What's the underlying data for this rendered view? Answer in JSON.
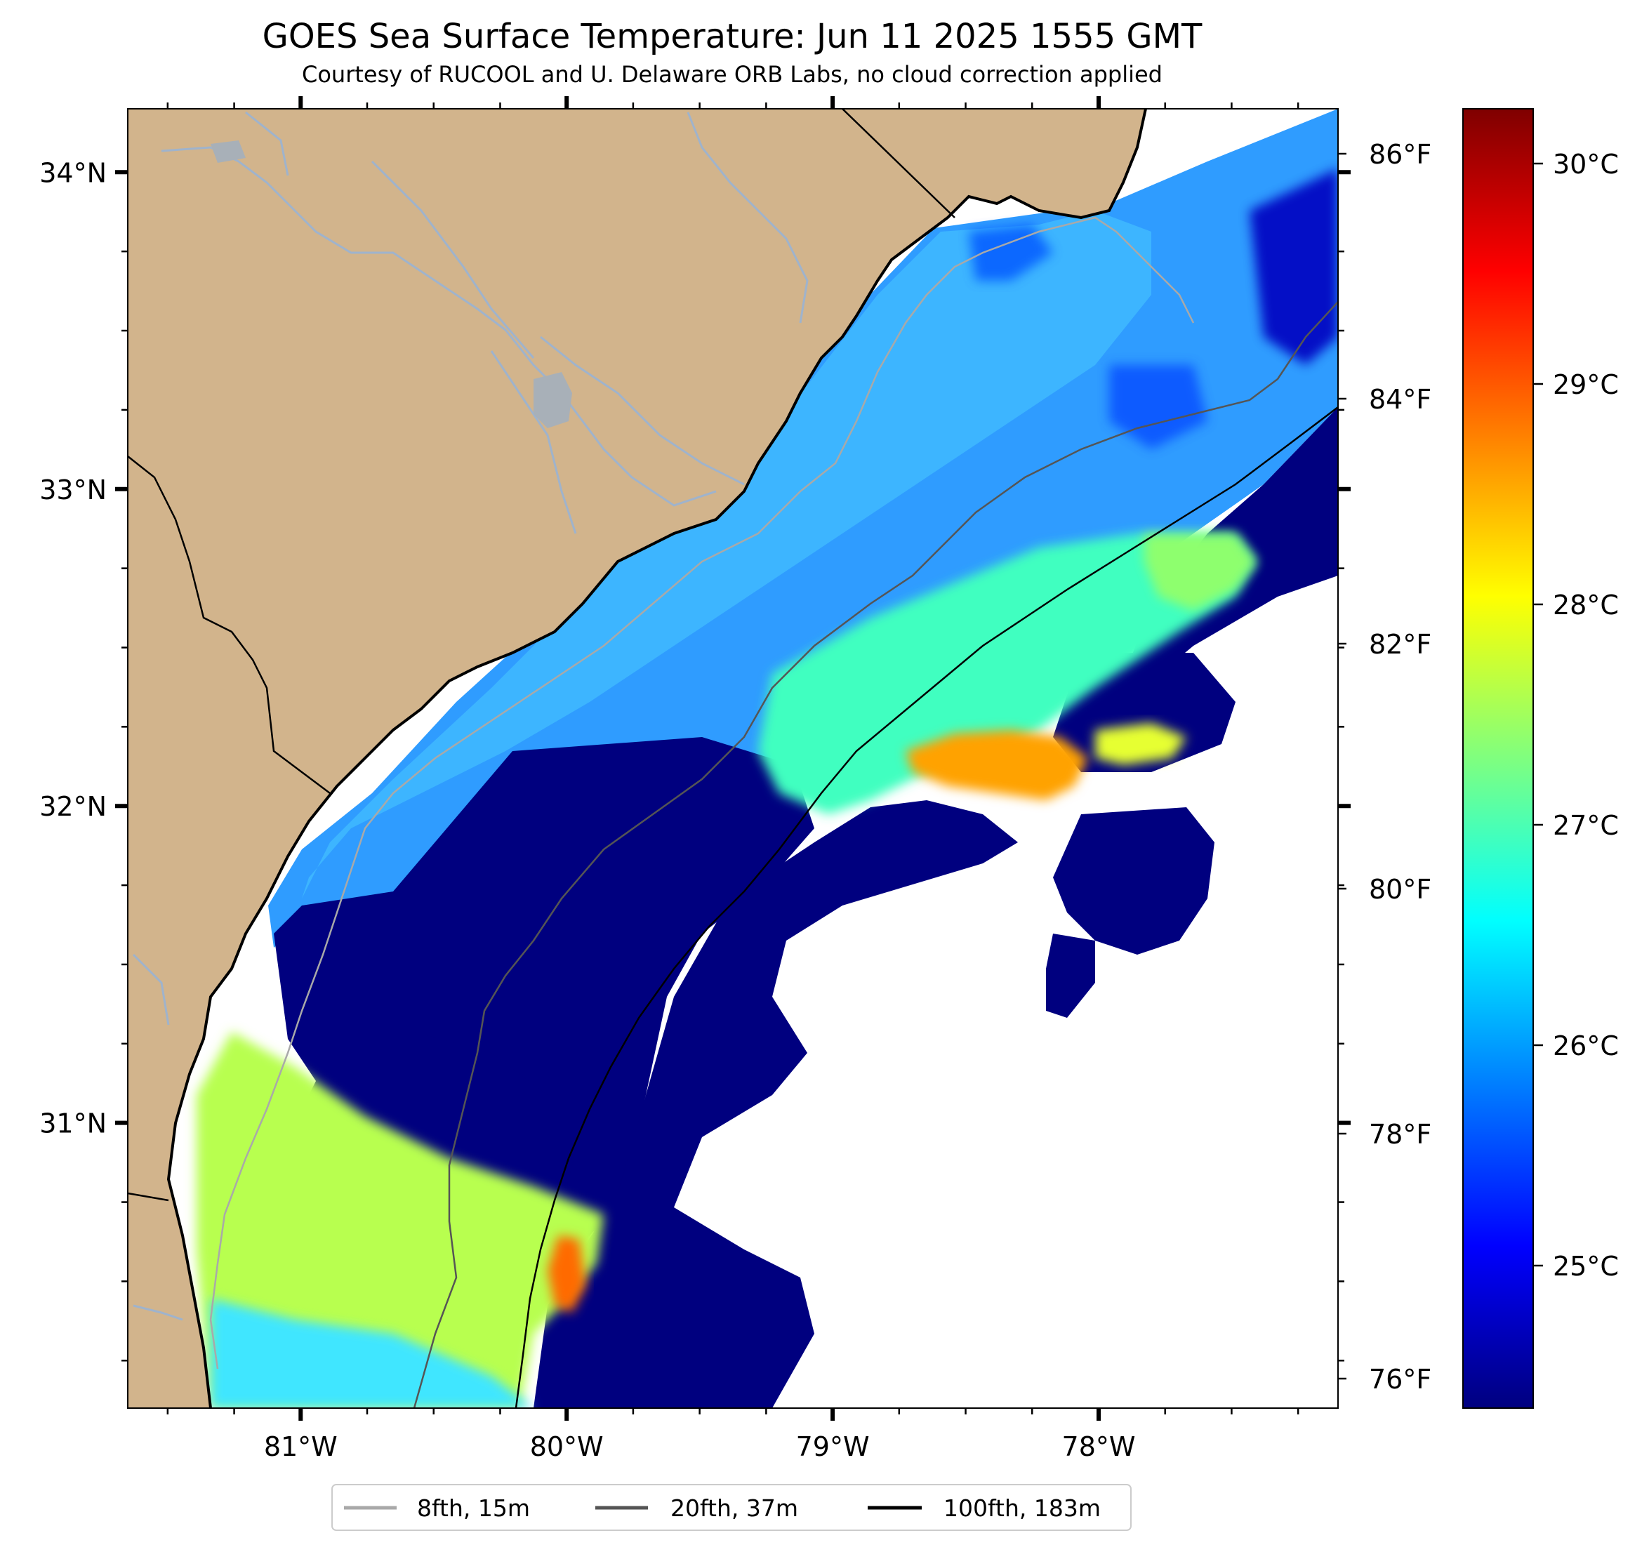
{
  "header": {
    "title": "GOES Sea Surface Temperature: Jun 11 2025 1555 GMT",
    "subtitle": "Courtesy of RUCOOL and U. Delaware ORB Labs, no cloud correction applied"
  },
  "map": {
    "lat_range": [
      30.1,
      34.2
    ],
    "lon_range": [
      -81.65,
      -77.1
    ],
    "lat_labels": [
      {
        "lat": 34,
        "label": "34°N"
      },
      {
        "lat": 33,
        "label": "33°N"
      },
      {
        "lat": 32,
        "label": "32°N"
      },
      {
        "lat": 31,
        "label": "31°N"
      }
    ],
    "lon_labels": [
      {
        "lon": -81,
        "label": "81°W"
      },
      {
        "lon": -80,
        "label": "80°W"
      },
      {
        "lon": -79,
        "label": "79°W"
      },
      {
        "lon": -78,
        "label": "78°W"
      }
    ],
    "colors": {
      "land": "#d2b48c",
      "no_data": "#ffffff",
      "river": "#9fb3cc",
      "coast": "#000000"
    }
  },
  "fahrenheit_scale": {
    "labels": [
      "86°F",
      "84°F",
      "82°F",
      "80°F",
      "78°F",
      "76°F"
    ]
  },
  "colorbar": {
    "labels": [
      "30°C",
      "29°C",
      "28°C",
      "27°C",
      "26°C",
      "25°C"
    ],
    "colormap": "jet",
    "stops": [
      "#00007f",
      "#0000ff",
      "#007fff",
      "#00ffff",
      "#7fff7f",
      "#ffff00",
      "#ff7f00",
      "#ff0000",
      "#7f0000"
    ]
  },
  "legend": {
    "entries": [
      {
        "label": "8fth, 15m",
        "color": "#a9a9a9"
      },
      {
        "label": "20fth, 37m",
        "color": "#555555"
      },
      {
        "label": "100fth, 183m",
        "color": "#000000"
      }
    ]
  }
}
